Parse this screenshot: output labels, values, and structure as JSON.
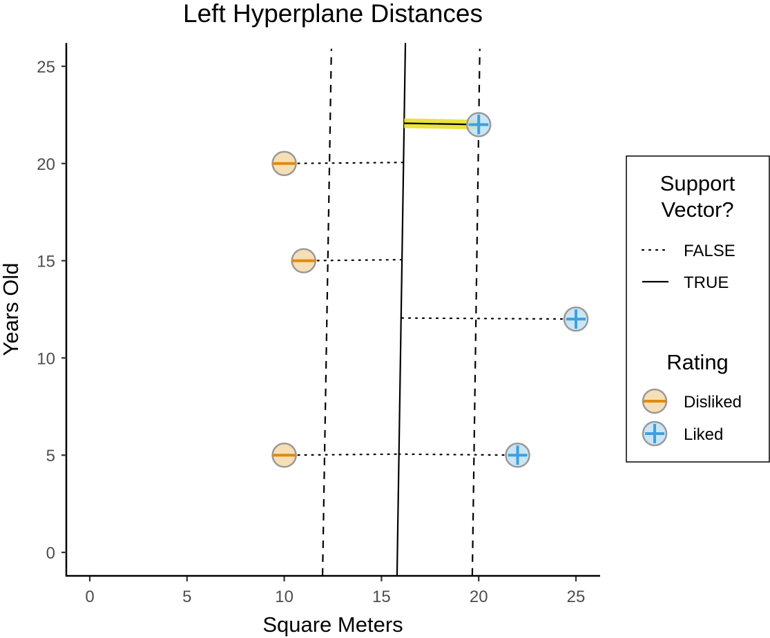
{
  "chart_data": {
    "type": "scatter",
    "title": "Left Hyperplane Distances",
    "xlabel": "Square Meters",
    "ylabel": "Years Old",
    "xlim": [
      -1.2,
      26.2
    ],
    "ylim": [
      -1.2,
      26.2
    ],
    "x_ticks": [
      0,
      5,
      10,
      15,
      20,
      25
    ],
    "y_ticks": [
      0,
      5,
      10,
      15,
      20,
      25
    ],
    "grid": false,
    "points": [
      {
        "x": 10,
        "y": 20,
        "rating": "Disliked",
        "support_vector": false
      },
      {
        "x": 11,
        "y": 15,
        "rating": "Disliked",
        "support_vector": false
      },
      {
        "x": 10,
        "y": 5,
        "rating": "Disliked",
        "support_vector": false
      },
      {
        "x": 20,
        "y": 22,
        "rating": "Liked",
        "support_vector": true
      },
      {
        "x": 25,
        "y": 12,
        "rating": "Liked",
        "support_vector": false
      },
      {
        "x": 22,
        "y": 5,
        "rating": "Liked",
        "support_vector": false
      }
    ],
    "hyperplane": {
      "x_at_ymin": 15.8,
      "x_at_ymax": 16.23,
      "style": "solid"
    },
    "margins": [
      {
        "name": "left-margin",
        "x_at_ymin": 11.97,
        "x_at_ymax": 12.43,
        "style": "dashed"
      },
      {
        "name": "right-margin",
        "x_at_ymin": 19.67,
        "x_at_ymax": 20.06,
        "style": "dashed"
      }
    ],
    "highlight_color": "#e8e02a",
    "legends": [
      {
        "title_lines": [
          "Support",
          "Vector?"
        ],
        "entries": [
          {
            "label": "FALSE",
            "line": "dotted"
          },
          {
            "label": "TRUE",
            "line": "solid"
          }
        ]
      },
      {
        "title_lines": [
          "Rating"
        ],
        "entries": [
          {
            "label": "Disliked",
            "fill": "#f5d9a8",
            "stroke": "#e08a10",
            "glyph": "minus"
          },
          {
            "label": "Liked",
            "fill": "#bfe0f5",
            "stroke": "#3da0e0",
            "glyph": "plus"
          }
        ]
      }
    ],
    "legend_position": "right"
  }
}
